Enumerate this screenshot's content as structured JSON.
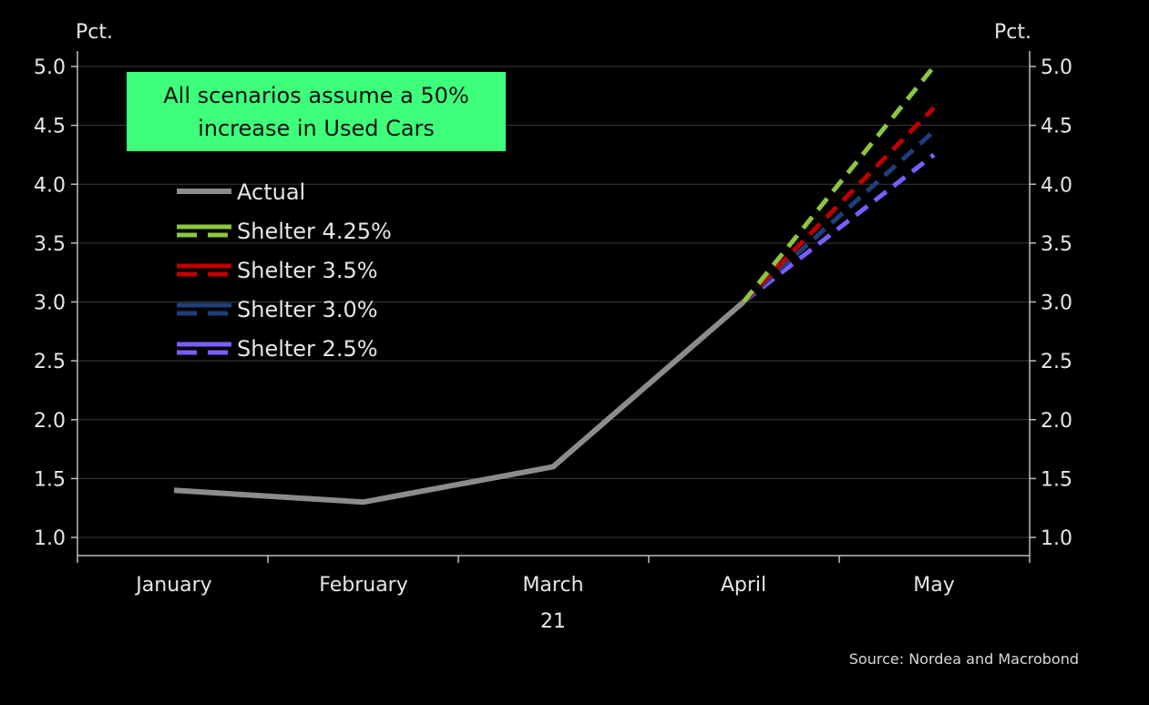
{
  "chart_data": {
    "type": "line",
    "x": [
      "January",
      "February",
      "March",
      "April",
      "May"
    ],
    "x_group_label": "21",
    "y_unit_left": "Pct.",
    "y_unit_right": "Pct.",
    "ylim": [
      1.0,
      5.0
    ],
    "yticks": [
      "1.0",
      "1.5",
      "2.0",
      "2.5",
      "3.0",
      "3.5",
      "4.0",
      "4.5",
      "5.0"
    ],
    "grid": true,
    "legend_position": "upper-left",
    "series": [
      {
        "name": "Actual",
        "values": [
          1.4,
          1.3,
          1.6,
          3.0,
          null
        ],
        "color": "#8c8c8c",
        "dashed": false
      },
      {
        "name": "Shelter 4.25%",
        "values": [
          null,
          null,
          null,
          3.0,
          5.0
        ],
        "color": "#8dc63f",
        "dashed": true
      },
      {
        "name": "Shelter 3.5%",
        "values": [
          null,
          null,
          null,
          3.0,
          4.65
        ],
        "color": "#c00000",
        "dashed": true
      },
      {
        "name": "Shelter 3.0%",
        "values": [
          null,
          null,
          null,
          3.0,
          4.45
        ],
        "color": "#1f3f7a",
        "dashed": true
      },
      {
        "name": "Shelter 2.5%",
        "values": [
          null,
          null,
          null,
          3.0,
          4.25
        ],
        "color": "#7b5cff",
        "dashed": true
      }
    ],
    "annotation": {
      "lines": [
        "All scenarios assume a 50%",
        "increase in Used Cars"
      ],
      "background": "#3dff7a"
    },
    "source": "Source: Nordea and Macrobond"
  }
}
